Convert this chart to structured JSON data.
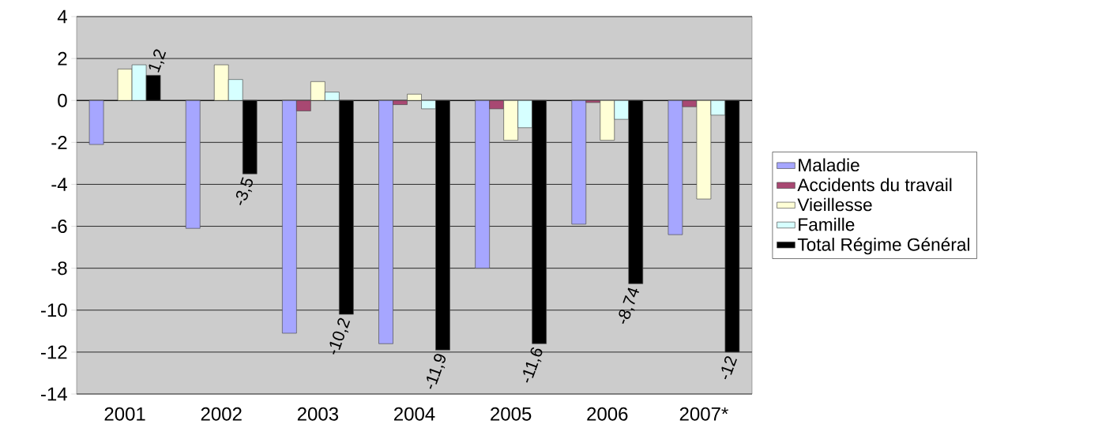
{
  "chart_data": {
    "type": "bar",
    "categories": [
      "2001",
      "2002",
      "2003",
      "2004",
      "2005",
      "2006",
      "2007*"
    ],
    "series": [
      {
        "name": "Maladie",
        "color": "#a6a6ff",
        "values": [
          -2.1,
          -6.1,
          -11.1,
          -11.6,
          -8.0,
          -5.9,
          -6.4
        ]
      },
      {
        "name": "Accidents du travail",
        "color": "#a84872",
        "values": [
          null,
          null,
          -0.5,
          -0.2,
          -0.4,
          -0.1,
          -0.3
        ]
      },
      {
        "name": "Vieillesse",
        "color": "#ffffd6",
        "values": [
          1.5,
          1.7,
          0.9,
          0.3,
          -1.9,
          -1.9,
          -4.7
        ]
      },
      {
        "name": "Famille",
        "color": "#d6ffff",
        "values": [
          1.7,
          1.0,
          0.4,
          -0.4,
          -1.3,
          -0.9,
          -0.7
        ]
      },
      {
        "name": "Total Régime Général",
        "color": "#000000",
        "values": [
          1.2,
          -3.5,
          -10.2,
          -11.9,
          -11.6,
          -8.74,
          -12
        ],
        "value_labels": [
          "1,2",
          "-3,5",
          "-10,2",
          "-11,9",
          "-11,6",
          "-8,74",
          "-12"
        ]
      }
    ],
    "ylim": [
      -14,
      4
    ],
    "yticks": [
      -14,
      -12,
      -10,
      -8,
      -6,
      -4,
      -2,
      0,
      2,
      4
    ],
    "grid": "y",
    "legend": "right"
  }
}
